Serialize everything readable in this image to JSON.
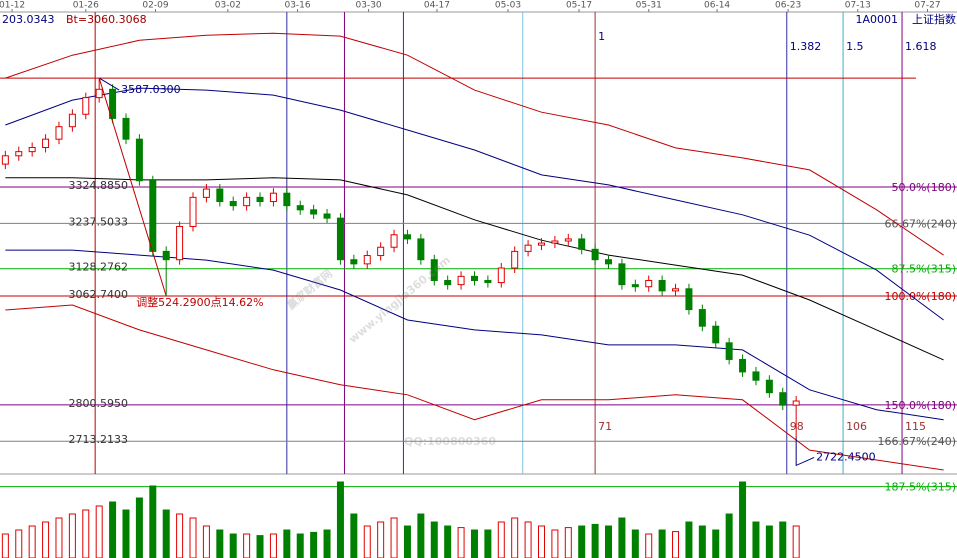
{
  "chart_data": {
    "type": "candlestick",
    "info_left": "203.0343",
    "info_bt": "Bt=3060.3068",
    "code": "1A0001",
    "name": "上证指数",
    "watermark": "赢家财富网",
    "watermark_url": "www.yingjia360.com",
    "watermark_qq": "QQ:100800360",
    "high_label": "3587.0300",
    "low_label": "2722.4500",
    "drop_label": "调整524.2900点14.62%",
    "xlim": [
      -0.4,
      71
    ],
    "ylim": [
      2644,
      3746
    ],
    "xticks": [
      {
        "value": 0.5,
        "label": "01-12"
      },
      {
        "value": 6,
        "label": "01-26"
      },
      {
        "value": 11.2,
        "label": "02-09"
      },
      {
        "value": 16.6,
        "label": "03-02"
      },
      {
        "value": 21.8,
        "label": "03-16"
      },
      {
        "value": 27.1,
        "label": "03-30"
      },
      {
        "value": 32.2,
        "label": "04-17"
      },
      {
        "value": 37.5,
        "label": "05-03"
      },
      {
        "value": 42.8,
        "label": "05-17"
      },
      {
        "value": 48,
        "label": "05-31"
      },
      {
        "value": 53.1,
        "label": "06-14"
      },
      {
        "value": 58.4,
        "label": "06-23"
      },
      {
        "value": 63.6,
        "label": "07-13"
      },
      {
        "value": 68.8,
        "label": "07-27"
      }
    ],
    "up_color": "#e00000",
    "down_color": "#008000",
    "x": [
      0,
      1,
      2,
      3,
      4,
      5,
      6,
      7,
      8,
      9,
      10,
      11,
      12,
      13,
      14,
      15,
      16,
      17,
      18,
      19,
      20,
      21,
      22,
      23,
      24,
      25,
      26,
      27,
      28,
      29,
      30,
      31,
      32,
      33,
      34,
      35,
      36,
      37,
      38,
      39,
      40,
      41,
      42,
      43,
      44,
      45,
      46,
      47,
      48,
      49,
      50,
      51,
      52,
      53,
      54,
      55,
      56,
      57,
      58,
      59
    ],
    "open": [
      3380,
      3400,
      3410,
      3420,
      3440,
      3470,
      3500,
      3540,
      3560,
      3490,
      3440,
      3340,
      3170,
      3150,
      3230,
      3300,
      3320,
      3290,
      3280,
      3300,
      3290,
      3310,
      3280,
      3270,
      3260,
      3250,
      3150,
      3140,
      3160,
      3180,
      3210,
      3200,
      3150,
      3100,
      3090,
      3110,
      3100,
      3095,
      3130,
      3170,
      3185,
      3190,
      3195,
      3200,
      3175,
      3150,
      3140,
      3090,
      3085,
      3100,
      3075,
      3080,
      3030,
      2990,
      2950,
      2910,
      2880,
      2860,
      2830,
      2800
    ],
    "high": [
      3412,
      3422,
      3432,
      3452,
      3482,
      3512,
      3552,
      3587.03,
      3572,
      3502,
      3452,
      3352,
      3182,
      3242,
      3312,
      3332,
      3332,
      3302,
      3312,
      3312,
      3322,
      3322,
      3292,
      3282,
      3272,
      3262,
      3162,
      3172,
      3192,
      3222,
      3222,
      3212,
      3162,
      3112,
      3122,
      3122,
      3112,
      3142,
      3182,
      3197,
      3202,
      3207,
      3212,
      3212,
      3187,
      3162,
      3152,
      3102,
      3112,
      3112,
      3092,
      3092,
      3042,
      3002,
      2962,
      2922,
      2892,
      2872,
      2842,
      2822
    ],
    "low": [
      3368,
      3388,
      3398,
      3408,
      3428,
      3458,
      3488,
      3528,
      3478,
      3428,
      3328,
      3158,
      3062.74,
      3138,
      3218,
      3288,
      3278,
      3268,
      3268,
      3278,
      3278,
      3268,
      3258,
      3248,
      3238,
      3138,
      3128,
      3128,
      3148,
      3168,
      3188,
      3138,
      3088,
      3078,
      3078,
      3088,
      3083,
      3083,
      3118,
      3158,
      3173,
      3178,
      3183,
      3163,
      3138,
      3128,
      3078,
      3073,
      3073,
      3063,
      3063,
      3018,
      2978,
      2938,
      2898,
      2868,
      2848,
      2818,
      2788,
      2722.45
    ],
    "close": [
      3400,
      3410,
      3420,
      3440,
      3470,
      3500,
      3540,
      3560,
      3490,
      3440,
      3340,
      3170,
      3150,
      3230,
      3300,
      3320,
      3290,
      3280,
      3300,
      3290,
      3310,
      3280,
      3270,
      3260,
      3250,
      3150,
      3140,
      3160,
      3180,
      3210,
      3200,
      3150,
      3100,
      3090,
      3110,
      3100,
      3095,
      3130,
      3170,
      3185,
      3190,
      3195,
      3200,
      3175,
      3150,
      3140,
      3090,
      3085,
      3100,
      3075,
      3080,
      3030,
      2990,
      2950,
      2910,
      2880,
      2860,
      2830,
      2800,
      2810
    ],
    "volume": [
      30,
      35,
      40,
      45,
      50,
      55,
      60,
      65,
      70,
      60,
      75,
      90,
      60,
      55,
      50,
      40,
      35,
      30,
      30,
      28,
      30,
      35,
      30,
      32,
      35,
      95,
      55,
      40,
      45,
      50,
      40,
      55,
      45,
      40,
      38,
      35,
      35,
      45,
      50,
      45,
      40,
      35,
      38,
      40,
      42,
      40,
      50,
      35,
      30,
      35,
      33,
      45,
      40,
      35,
      55,
      95,
      45,
      40,
      45,
      40
    ],
    "volume_ylim": [
      0,
      100
    ],
    "band_x": [
      0,
      5,
      10,
      15,
      20,
      25,
      30,
      35,
      40,
      45,
      50,
      55,
      60,
      65,
      70
    ],
    "bands": [
      {
        "color": "#c00000",
        "values": [
          3587,
          3642,
          3678,
          3690,
          3695,
          3688,
          3642,
          3558,
          3505,
          3474,
          3419,
          3395,
          3366,
          3270,
          3161
        ]
      },
      {
        "color": "#000080",
        "values": [
          3474,
          3534,
          3563,
          3558,
          3546,
          3510,
          3462,
          3414,
          3354,
          3330,
          3294,
          3258,
          3209,
          3125,
          3005
        ]
      },
      {
        "color": "#000000",
        "values": [
          3347,
          3347,
          3342,
          3342,
          3347,
          3342,
          3306,
          3246,
          3197,
          3161,
          3137,
          3113,
          3053,
          2981,
          2909
        ]
      },
      {
        "color": "#000080",
        "values": [
          3173,
          3173,
          3161,
          3149,
          3125,
          3077,
          3005,
          2981,
          2969,
          2945,
          2945,
          2933,
          2837,
          2789,
          2765
        ]
      },
      {
        "color": "#c00000",
        "values": [
          3029,
          3041,
          2981,
          2933,
          2885,
          2849,
          2825,
          2765,
          2813,
          2813,
          2825,
          2813,
          2692,
          2668,
          2644
        ]
      }
    ],
    "levels": [
      {
        "value": 3587.03,
        "color": "#c00000"
      },
      {
        "value": 3324.885,
        "label": "3324.8850",
        "right_label": "50.0%(180)",
        "color": "#800080"
      },
      {
        "value": 3237.5033,
        "label": "3237.5033",
        "right_label": "66.67%(240)",
        "color": "#808080"
      },
      {
        "value": 3128.2762,
        "label": "3128.2762",
        "right_label": "87.5%(315)",
        "color": "#00b000"
      },
      {
        "value": 3062.74,
        "label": "3062.7400",
        "right_label": "100.0%(180)",
        "color": "#c00000"
      },
      {
        "value": 2800.595,
        "label": "2800.5950",
        "right_label": "150.0%(180)",
        "color": "#800080"
      },
      {
        "value": 2713.2133,
        "label": "2713.2133",
        "right_label": "166.67%(240)",
        "color": "#808080"
      },
      {
        "value": 2603.99,
        "right_label": "187.5%(315)",
        "color": "#00b000"
      }
    ],
    "vlines": [
      {
        "x": 6.7,
        "color": "#c00000"
      },
      {
        "x": 21.0,
        "color": "#3030a0"
      },
      {
        "x": 25.3,
        "color": "#800080"
      },
      {
        "x": 29.7,
        "color": "#3030a0"
      },
      {
        "x": 38.6,
        "color": "#80c0e0"
      },
      {
        "x": 44.0,
        "color": "#a03030",
        "label": "1",
        "bottom_label": "71"
      },
      {
        "x": 58.3,
        "color": "#3030a0",
        "label": "1.382",
        "bottom_label": "98"
      },
      {
        "x": 62.5,
        "color": "#40b0c0",
        "label": "1.5",
        "bottom_label": "106"
      },
      {
        "x": 66.9,
        "color": "#800080",
        "label": "1.618",
        "bottom_label": "115"
      }
    ]
  }
}
